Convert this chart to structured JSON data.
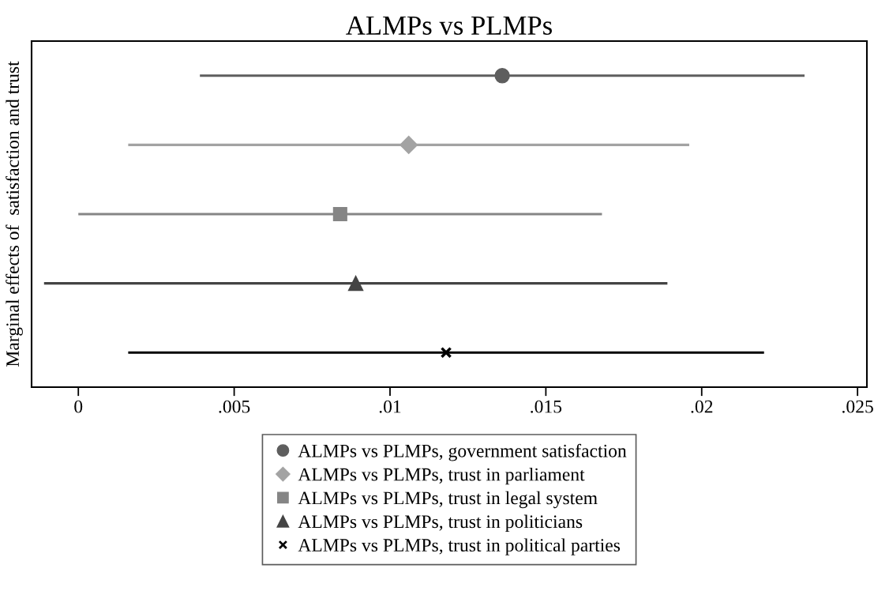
{
  "chart_data": {
    "type": "scatter",
    "orientation": "horizontal",
    "title": "ALMPs vs PLMPs",
    "ylabel": "Marginal effects of  satisfaction and trust",
    "categories": [
      null,
      null,
      null,
      null,
      null
    ],
    "xlim": [
      -0.0015,
      0.0253
    ],
    "xticks": [
      0,
      {
        "value": 0.005,
        "label": ".005"
      },
      {
        "value": 0.01,
        "label": ".01"
      },
      {
        "value": 0.015,
        "label": ".015"
      },
      {
        "value": 0.02,
        "label": ".02"
      },
      {
        "value": 0.025,
        "label": ".025"
      }
    ],
    "grid": false,
    "legend": "bottom",
    "series": [
      {
        "name": "ALMPs vs PLMPs, government satisfaction",
        "color": "#5e5e5e",
        "marker": "circle",
        "values": [
          0.0136,
          null,
          null,
          null,
          null
        ],
        "errors": [
          [
            0.0039,
            0.0233
          ],
          null,
          null,
          null,
          null
        ]
      },
      {
        "name": "ALMPs vs PLMPs, trust in parliament",
        "color": "#a3a3a3",
        "marker": "diamond",
        "values": [
          null,
          0.0106,
          null,
          null,
          null
        ],
        "errors": [
          null,
          [
            0.0016,
            0.0196
          ],
          null,
          null,
          null
        ]
      },
      {
        "name": "ALMPs vs PLMPs, trust in legal system",
        "color": "#858585",
        "marker": "square",
        "values": [
          null,
          null,
          0.0084,
          null,
          null
        ],
        "errors": [
          null,
          null,
          [
            0.0,
            0.0168
          ],
          null,
          null
        ]
      },
      {
        "name": "ALMPs vs PLMPs, trust in politicians",
        "color": "#444444",
        "marker": "triangle",
        "values": [
          null,
          null,
          null,
          0.0089,
          null
        ],
        "errors": [
          null,
          null,
          null,
          [
            -0.0011,
            0.0189
          ],
          null
        ]
      },
      {
        "name": "ALMPs vs PLMPs, trust in political parties",
        "color": "#000000",
        "marker": "cross",
        "values": [
          null,
          null,
          null,
          null,
          0.0118
        ],
        "errors": [
          null,
          null,
          null,
          null,
          [
            0.0016,
            0.022
          ]
        ]
      }
    ]
  }
}
